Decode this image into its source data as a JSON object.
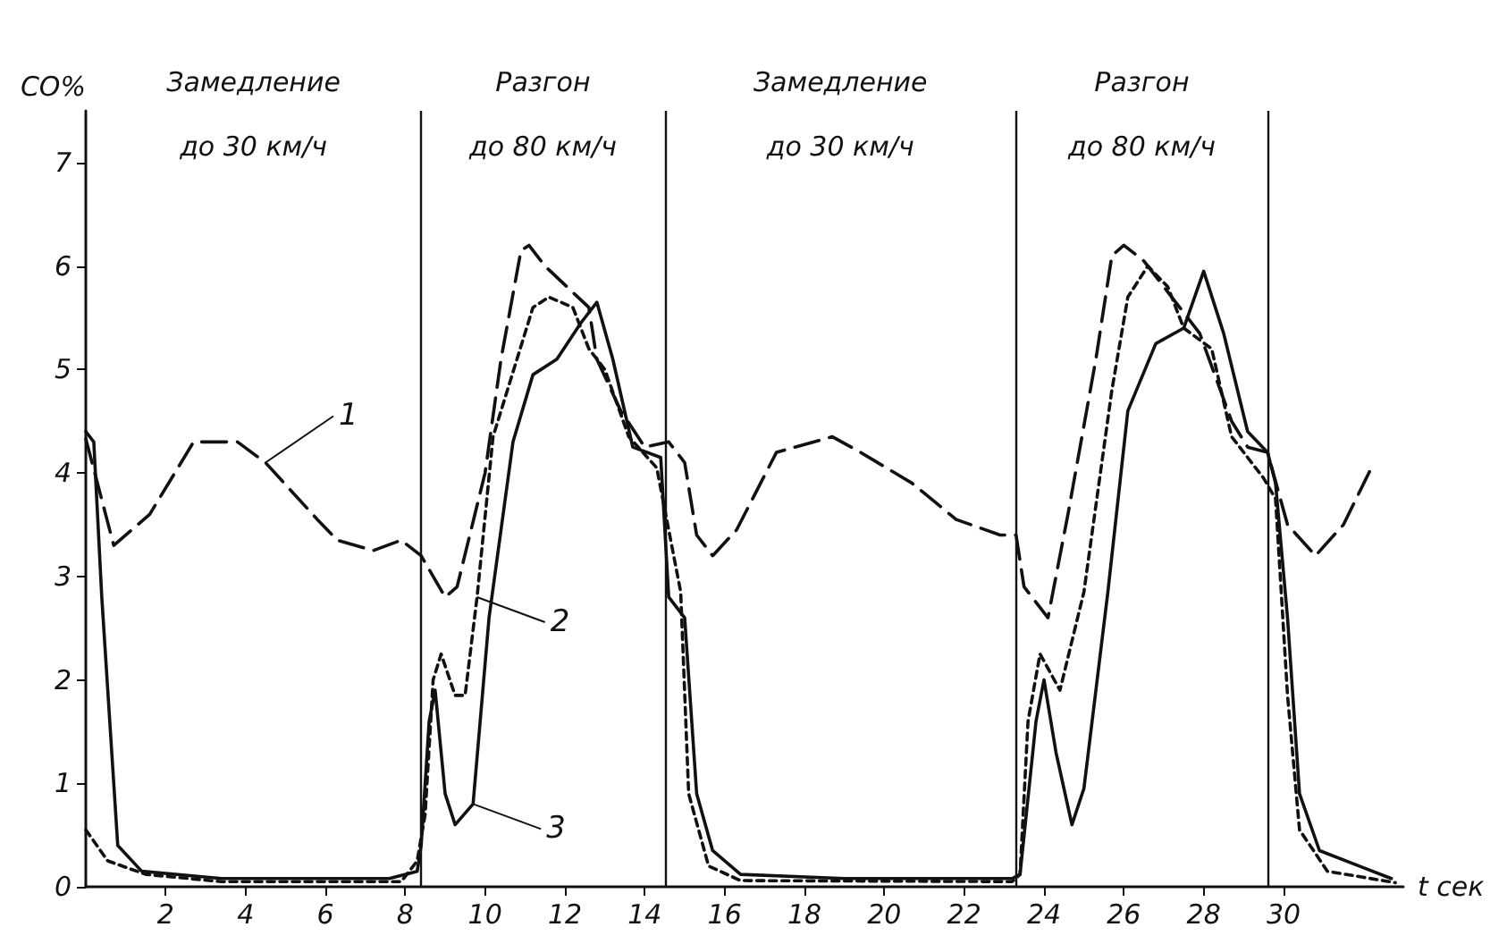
{
  "chart_data": {
    "type": "line",
    "xlabel": "t сек",
    "ylabel": "CO%",
    "xlim": [
      0,
      33
    ],
    "ylim": [
      0,
      7.5
    ],
    "xticks": [
      2,
      4,
      6,
      8,
      10,
      12,
      14,
      16,
      18,
      20,
      22,
      24,
      26,
      28,
      30
    ],
    "yticks": [
      0,
      1,
      2,
      3,
      4,
      5,
      6,
      7
    ],
    "grid": false,
    "marker": "none",
    "series": [
      {
        "color": "#111111",
        "line_style": "dashed",
        "x": [
          0,
          0.7,
          1.6,
          2.7,
          3.8,
          4.5,
          5.8,
          6.3,
          7.2,
          7.9,
          8.4,
          9.0,
          9.3,
          10.0,
          10.4,
          10.9,
          11.1,
          11.5,
          12.6,
          12.8,
          13.4,
          14.0,
          14.6,
          15.0,
          15.3,
          15.7,
          16.3,
          17.3,
          18.7,
          19.4,
          20.7,
          21.8,
          22.9,
          23.3,
          23.5,
          24.1,
          24.6,
          25.3,
          25.7,
          26.0,
          26.5,
          27.1,
          27.9,
          28.7,
          29.1,
          29.6,
          30.1,
          30.8,
          31.5,
          32.2
        ],
        "values": [
          4.33,
          3.3,
          3.6,
          4.3,
          4.3,
          4.1,
          3.55,
          3.35,
          3.25,
          3.35,
          3.2,
          2.8,
          2.9,
          4.0,
          5.1,
          6.15,
          6.2,
          6.0,
          5.6,
          5.1,
          4.6,
          4.25,
          4.3,
          4.1,
          3.4,
          3.2,
          3.45,
          4.2,
          4.35,
          4.2,
          3.9,
          3.55,
          3.4,
          3.4,
          2.9,
          2.6,
          3.6,
          5.1,
          6.1,
          6.2,
          6.05,
          5.75,
          5.35,
          4.5,
          4.25,
          4.2,
          3.5,
          3.2,
          3.5,
          4.05
        ]
      },
      {
        "color": "#111111",
        "line_style": "dotted",
        "x": [
          0,
          0.55,
          1.5,
          3.4,
          7.9,
          8.3,
          8.5,
          8.7,
          8.9,
          9.25,
          9.5,
          9.8,
          10.2,
          10.8,
          11.2,
          11.6,
          12.2,
          12.6,
          13.0,
          13.6,
          14.3,
          14.5,
          14.9,
          15.1,
          15.6,
          16.4,
          23.2,
          23.4,
          23.6,
          23.9,
          24.4,
          25.0,
          25.7,
          26.1,
          26.6,
          27.1,
          27.5,
          28.2,
          28.7,
          29.5,
          29.8,
          30.1,
          30.4,
          31.1,
          32.8
        ],
        "values": [
          0.55,
          0.25,
          0.12,
          0.05,
          0.05,
          0.25,
          0.7,
          2.0,
          2.25,
          1.85,
          1.85,
          2.8,
          4.35,
          5.1,
          5.6,
          5.7,
          5.6,
          5.2,
          5.0,
          4.35,
          4.05,
          3.65,
          2.85,
          0.9,
          0.2,
          0.06,
          0.05,
          0.12,
          1.6,
          2.25,
          1.9,
          2.85,
          4.8,
          5.7,
          6.0,
          5.8,
          5.4,
          5.2,
          4.35,
          3.95,
          3.75,
          1.85,
          0.55,
          0.15,
          0.04
        ]
      },
      {
        "color": "#111111",
        "line_style": "solid",
        "x": [
          0,
          0.2,
          0.4,
          0.6,
          0.8,
          1.4,
          3.4,
          7.6,
          8.3,
          8.4,
          8.6,
          8.75,
          9.0,
          9.25,
          9.7,
          10.1,
          10.7,
          11.2,
          11.8,
          12.4,
          12.8,
          13.2,
          13.7,
          14.4,
          14.6,
          15.0,
          15.3,
          15.7,
          16.4,
          19.0,
          23.2,
          23.4,
          23.8,
          24.0,
          24.3,
          24.7,
          25.0,
          25.6,
          26.1,
          26.8,
          27.5,
          28.0,
          28.5,
          29.1,
          29.6,
          29.8,
          30.1,
          30.4,
          30.9,
          32.7
        ],
        "values": [
          4.4,
          4.3,
          2.8,
          1.6,
          0.4,
          0.15,
          0.08,
          0.08,
          0.15,
          0.4,
          1.6,
          1.9,
          0.9,
          0.6,
          0.8,
          2.6,
          4.3,
          4.95,
          5.1,
          5.45,
          5.65,
          5.1,
          4.25,
          4.15,
          2.8,
          2.6,
          0.9,
          0.35,
          0.12,
          0.08,
          0.08,
          0.12,
          1.6,
          2.0,
          1.3,
          0.6,
          0.95,
          2.85,
          4.6,
          5.25,
          5.4,
          5.95,
          5.35,
          4.4,
          4.2,
          3.9,
          2.6,
          0.9,
          0.35,
          0.08
        ]
      }
    ],
    "ref_lines": [
      {
        "axis": "x",
        "value": 8.4
      },
      {
        "axis": "x",
        "value": 14.5
      },
      {
        "axis": "x",
        "value": 23.3
      },
      {
        "axis": "x",
        "value": 29.6
      }
    ],
    "annotations": [
      "Замедление",
      "до 30 км/ч",
      "Разгон",
      "до 80 км/ч",
      "Замедление",
      "до 30 км/ч",
      "Разгон",
      "до 80 км/ч",
      {
        "text": "1",
        "x": 4.5,
        "y": 4.1
      },
      {
        "text": "2",
        "x": 9.8,
        "y": 2.8
      },
      {
        "text": "3",
        "x": 9.7,
        "y": 0.8
      }
    ]
  }
}
